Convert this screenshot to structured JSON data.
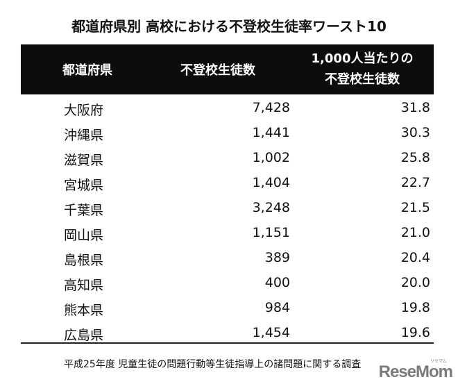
{
  "title": "都道府県別 高校における不登校生徒率ワースト10",
  "table": {
    "headers": {
      "prefecture": "都道府県",
      "count": "不登校生徒数",
      "rate_line1": "1,000人当たりの",
      "rate_line2": "不登校生徒数"
    },
    "rows": [
      {
        "prefecture": "大阪府",
        "count": "7,428",
        "rate": "31.8"
      },
      {
        "prefecture": "沖縄県",
        "count": "1,441",
        "rate": "30.3"
      },
      {
        "prefecture": "滋賀県",
        "count": "1,002",
        "rate": "25.8"
      },
      {
        "prefecture": "宮城県",
        "count": "1,404",
        "rate": "22.7"
      },
      {
        "prefecture": "千葉県",
        "count": "3,248",
        "rate": "21.5"
      },
      {
        "prefecture": "岡山県",
        "count": "1,151",
        "rate": "21.0"
      },
      {
        "prefecture": "島根県",
        "count": "389",
        "rate": "20.4"
      },
      {
        "prefecture": "高知県",
        "count": "400",
        "rate": "20.0"
      },
      {
        "prefecture": "熊本県",
        "count": "984",
        "rate": "19.8"
      },
      {
        "prefecture": "広島県",
        "count": "1,454",
        "rate": "19.6"
      }
    ]
  },
  "source": "平成25年度 児童生徒の問題行動等生徒指導上の諸問題に関する調査",
  "watermark": {
    "text": "ReseMom",
    "small": "リセマム"
  },
  "colors": {
    "header_bg": "#0d0d0d",
    "header_text": "#ffffff",
    "text": "#111111"
  }
}
